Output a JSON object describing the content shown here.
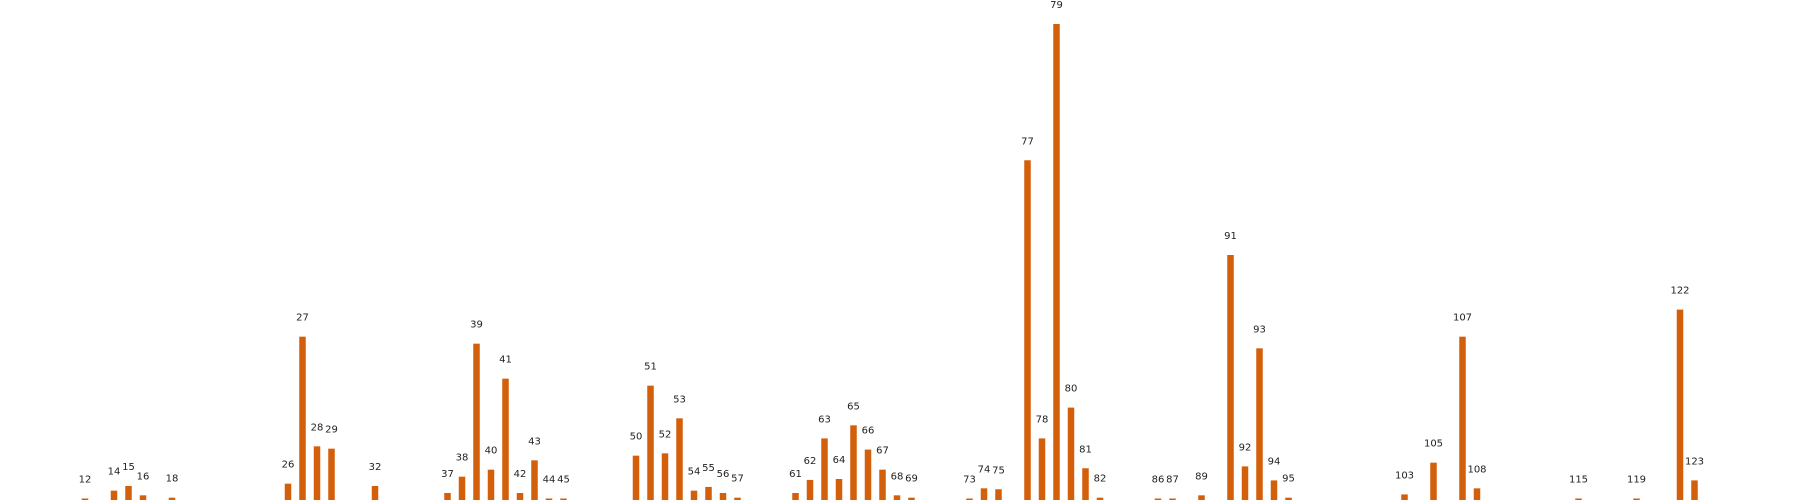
{
  "chart_data": {
    "type": "bar",
    "title": "",
    "xlabel": "",
    "ylabel": "",
    "grid": false,
    "bar_color": "#d35f0a",
    "categories": [
      "12",
      "14",
      "15",
      "16",
      "18",
      "26",
      "27",
      "28",
      "29",
      "32",
      "37",
      "38",
      "39",
      "40",
      "41",
      "42",
      "43",
      "44",
      "45",
      "50",
      "51",
      "52",
      "53",
      "54",
      "55",
      "56",
      "57",
      "61",
      "62",
      "63",
      "64",
      "65",
      "66",
      "67",
      "68",
      "69",
      "73",
      "74",
      "75",
      "77",
      "78",
      "79",
      "80",
      "81",
      "82",
      "86",
      "87",
      "89",
      "91",
      "92",
      "93",
      "94",
      "95",
      "103",
      "105",
      "107",
      "108",
      "115",
      "119",
      "122",
      "123"
    ],
    "x": [
      12,
      14,
      15,
      16,
      18,
      26,
      27,
      28,
      29,
      32,
      37,
      38,
      39,
      40,
      41,
      42,
      43,
      44,
      45,
      50,
      51,
      52,
      53,
      54,
      55,
      56,
      57,
      61,
      62,
      63,
      64,
      65,
      66,
      67,
      68,
      69,
      73,
      74,
      75,
      77,
      78,
      79,
      80,
      81,
      82,
      86,
      87,
      89,
      91,
      92,
      93,
      94,
      95,
      103,
      105,
      107,
      108,
      115,
      119,
      122,
      123
    ],
    "values": [
      0.3,
      2.0,
      3.0,
      1.0,
      0.5,
      3.5,
      35.0,
      11.5,
      11.0,
      3.0,
      1.5,
      5.0,
      33.5,
      6.5,
      26.0,
      1.5,
      8.5,
      0.3,
      0.3,
      9.5,
      24.5,
      10.0,
      17.5,
      2.0,
      2.8,
      1.5,
      0.5,
      1.5,
      4.3,
      13.2,
      4.5,
      16.0,
      10.8,
      6.5,
      1.0,
      0.5,
      0.3,
      2.5,
      2.3,
      72.8,
      13.2,
      102.0,
      19.8,
      6.8,
      0.5,
      0.3,
      0.3,
      1.0,
      52.5,
      7.2,
      32.5,
      4.2,
      0.5,
      1.2,
      8.0,
      35.0,
      2.5,
      0.3,
      0.3,
      40.8,
      4.2
    ],
    "xlim": [
      0,
      123
    ],
    "ylim": [
      0,
      102
    ],
    "legend": "none"
  }
}
